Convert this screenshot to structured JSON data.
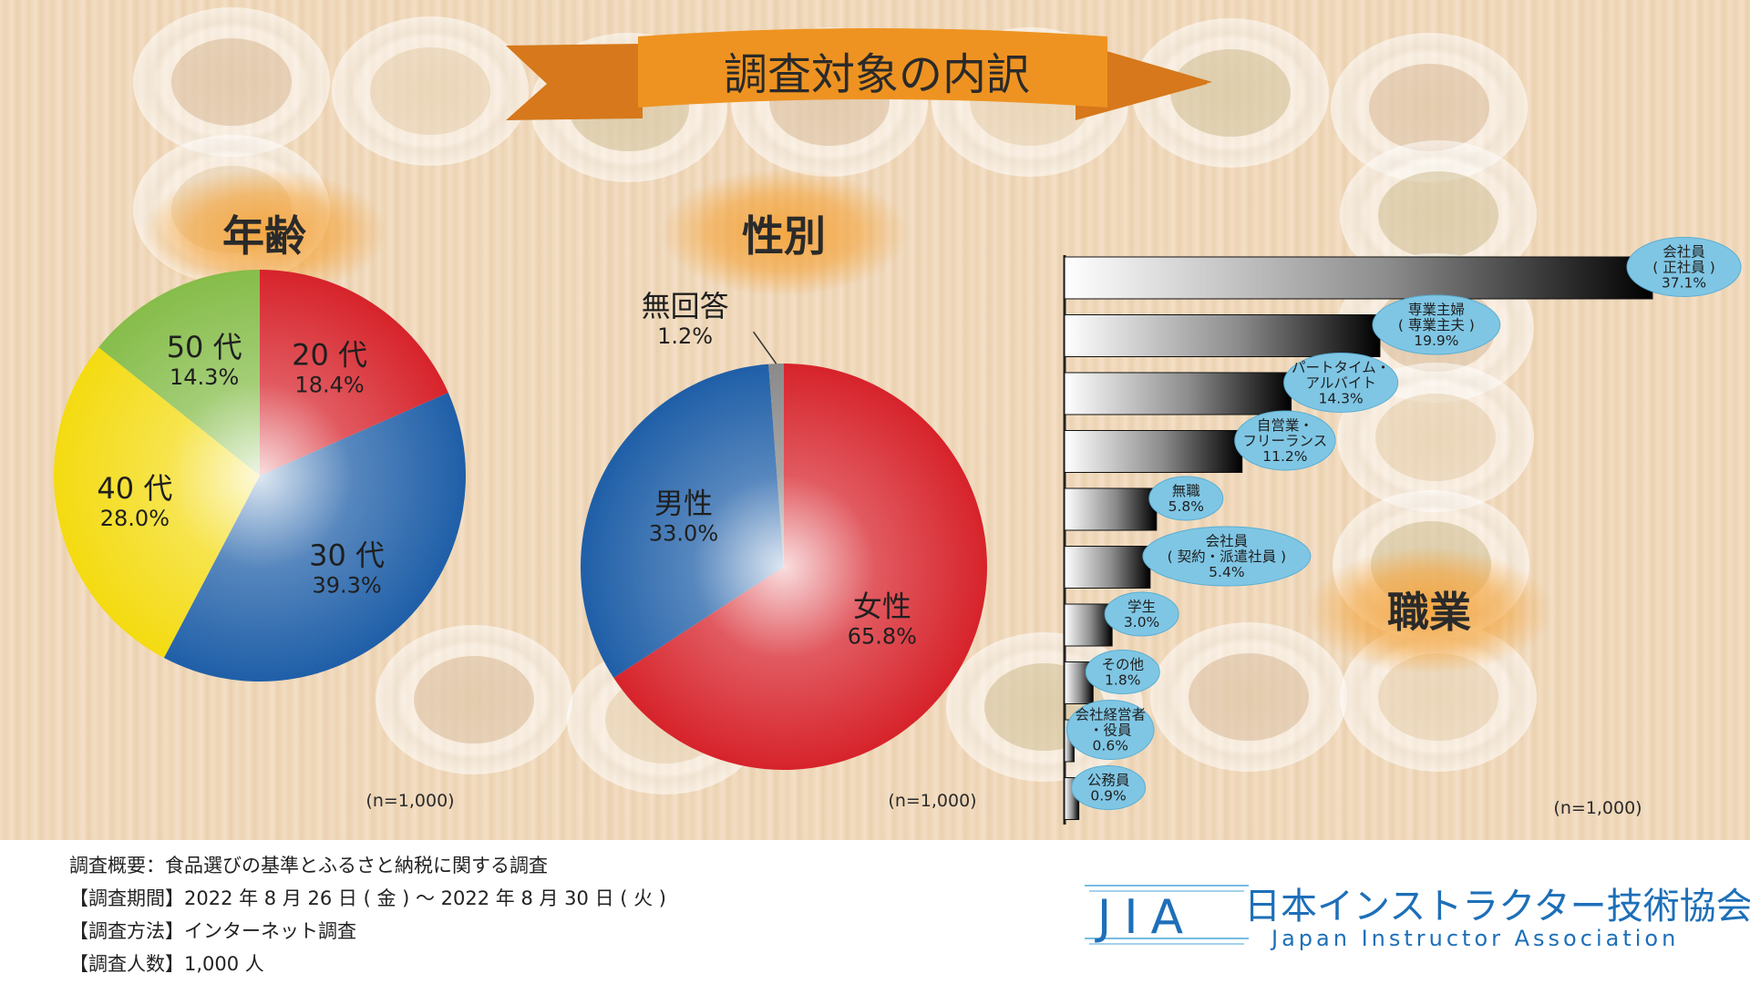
{
  "banner": {
    "title": "調査対象の内訳"
  },
  "headings": {
    "age": "年齢",
    "gender": "性別",
    "occupation": "職業"
  },
  "n_note": "(n=1,000)",
  "colors": {
    "red": "#d7232b",
    "blue": "#1f5fa8",
    "yellow": "#f4db11",
    "green": "#86bd4a",
    "gray": "#8a8a8a",
    "banner": "#ee9321",
    "glow": "#f4a43c",
    "callout": "#7fc6e4"
  },
  "chart_data": [
    {
      "type": "pie",
      "title": "年齢",
      "slices": [
        {
          "label": "20 代",
          "value": 18.4,
          "value_label": "18.4%",
          "color": "#d7232b"
        },
        {
          "label": "30 代",
          "value": 39.3,
          "value_label": "39.3%",
          "color": "#1f5fa8"
        },
        {
          "label": "40 代",
          "value": 28.0,
          "value_label": "28.0%",
          "color": "#f4db11"
        },
        {
          "label": "50 代",
          "value": 14.3,
          "value_label": "14.3%",
          "color": "#86bd4a"
        }
      ]
    },
    {
      "type": "pie",
      "title": "性別",
      "slices": [
        {
          "label": "女性",
          "value": 65.8,
          "value_label": "65.8%",
          "color": "#d7232b"
        },
        {
          "label": "男性",
          "value": 33.0,
          "value_label": "33.0%",
          "color": "#1f5fa8"
        },
        {
          "label": "無回答",
          "value": 1.2,
          "value_label": "1.2%",
          "color": "#8a8a8a"
        }
      ]
    },
    {
      "type": "bar",
      "orientation": "horizontal",
      "title": "職業",
      "xlim": [
        0,
        37.1
      ],
      "categories": [
        [
          "会社員",
          "( 正社員 )"
        ],
        [
          "専業主婦",
          "( 専業主夫 )"
        ],
        [
          "パートタイム・",
          "アルバイト"
        ],
        [
          "自営業・",
          "フリーランス"
        ],
        [
          "無職"
        ],
        [
          "会社員",
          "( 契約・派遣社員 )"
        ],
        [
          "学生"
        ],
        [
          "その他"
        ],
        [
          "会社経営者",
          "・役員"
        ],
        [
          "公務員"
        ]
      ],
      "values": [
        37.1,
        19.9,
        14.3,
        11.2,
        5.8,
        5.4,
        3.0,
        1.8,
        0.6,
        0.9
      ],
      "value_labels": [
        "37.1%",
        "19.9%",
        "14.3%",
        "11.2%",
        "5.8%",
        "5.4%",
        "3.0%",
        "1.8%",
        "0.6%",
        "0.9%"
      ]
    }
  ],
  "footer": {
    "lines": [
      "調査概要：食品選びの基準とふるさと納税に関する調査",
      "【調査期間】2022 年 8 月 26 日 ( 金 ) ～ 2022 年 8 月 30 日 ( 火 )",
      "【調査方法】インターネット調査",
      "【調査人数】1,000 人"
    ]
  },
  "logo": {
    "mark": "JIA",
    "name_ja": "日本インストラクター技術協会",
    "name_en": "Japan Instructor Association"
  }
}
